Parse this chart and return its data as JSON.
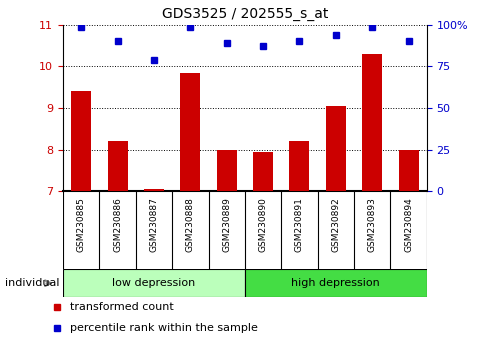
{
  "title": "GDS3525 / 202555_s_at",
  "samples": [
    "GSM230885",
    "GSM230886",
    "GSM230887",
    "GSM230888",
    "GSM230889",
    "GSM230890",
    "GSM230891",
    "GSM230892",
    "GSM230893",
    "GSM230894"
  ],
  "bar_values": [
    9.4,
    8.2,
    7.05,
    9.85,
    8.0,
    7.95,
    8.2,
    9.05,
    10.3,
    8.0
  ],
  "dot_values_left": [
    10.95,
    10.6,
    10.15,
    10.95,
    10.55,
    10.5,
    10.6,
    10.75,
    10.95,
    10.6
  ],
  "bar_color": "#cc0000",
  "dot_color": "#0000cc",
  "ylim_left": [
    7,
    11
  ],
  "ylim_right": [
    0,
    100
  ],
  "yticks_left": [
    7,
    8,
    9,
    10,
    11
  ],
  "ytick_labels_right": [
    "0",
    "25",
    "50",
    "75",
    "100%"
  ],
  "group_low_label": "low depression",
  "group_high_label": "high depression",
  "group_low_color": "#bbffbb",
  "group_high_color": "#44dd44",
  "individual_label": "individual",
  "legend_bar_label": "transformed count",
  "legend_dot_label": "percentile rank within the sample",
  "background_color": "#ffffff",
  "figsize": [
    4.85,
    3.54
  ],
  "dpi": 100
}
